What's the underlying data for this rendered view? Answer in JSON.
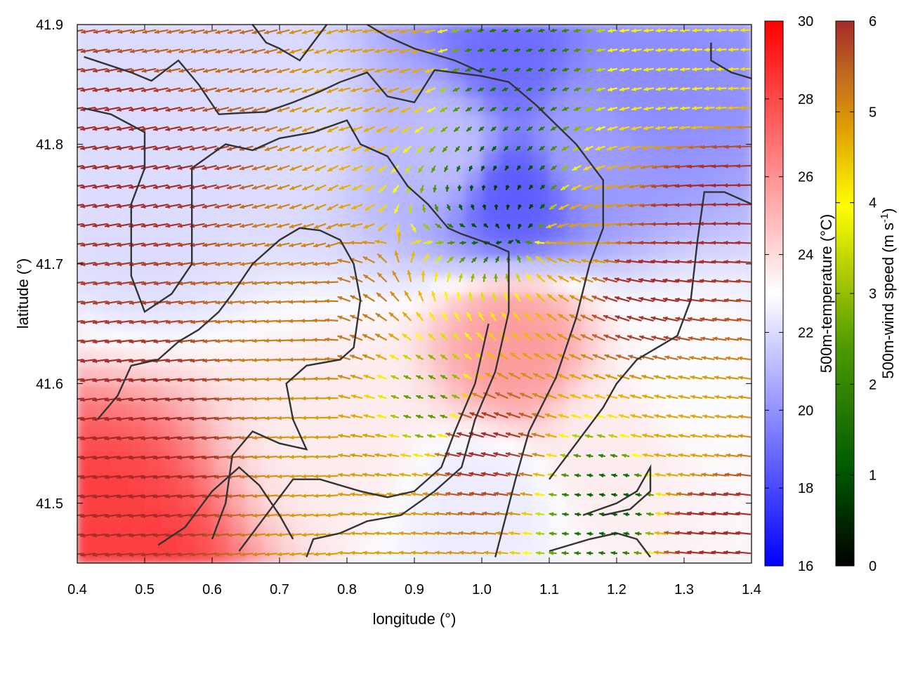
{
  "chart_data": {
    "type": "heatmap",
    "title": "",
    "xlabel": "longitude (°)",
    "ylabel": "latitude (°)",
    "xlim": [
      0.4,
      1.4
    ],
    "ylim": [
      41.45,
      41.9
    ],
    "x_ticks": [
      "0.4",
      "0.5",
      "0.6",
      "0.7",
      "0.8",
      "0.9",
      "1.0",
      "1.1",
      "1.2",
      "1.3",
      "1.4"
    ],
    "y_ticks": [
      "41.5",
      "41.6",
      "41.7",
      "41.8",
      "41.9"
    ],
    "grid": false,
    "overlay": "wind vectors",
    "coastline_color": "#333333",
    "temperature_colorbar": {
      "label": "500m-temperature (°C)",
      "range": [
        16,
        30
      ],
      "ticks": [
        "16",
        "18",
        "20",
        "22",
        "24",
        "26",
        "28",
        "30"
      ],
      "colors": [
        "#0000ff",
        "#ffffff",
        "#ff0000"
      ]
    },
    "wind_colorbar": {
      "label": "500m-wind speed (m s",
      "label_superscript": "-1",
      "label_suffix": ")",
      "range": [
        0,
        6
      ],
      "ticks": [
        "0",
        "1",
        "2",
        "3",
        "4",
        "5",
        "6"
      ],
      "colors": [
        "#000000",
        "#006400",
        "#6aaa00",
        "#ffff00",
        "#e8b000",
        "#c87820",
        "#a52a2a"
      ]
    },
    "temperature_field": [
      {
        "lon": 1.04,
        "lat": 41.87,
        "value": 18.5
      },
      {
        "lon": 1.05,
        "lat": 41.76,
        "value": 18.0
      },
      {
        "lon": 1.15,
        "lat": 41.8,
        "value": 20.0
      },
      {
        "lon": 1.25,
        "lat": 41.85,
        "value": 19.5
      },
      {
        "lon": 0.95,
        "lat": 41.8,
        "value": 21.0
      },
      {
        "lon": 1.05,
        "lat": 41.63,
        "value": 26.0
      },
      {
        "lon": 0.45,
        "lat": 41.46,
        "value": 29.0
      },
      {
        "lon": 0.5,
        "lat": 41.75,
        "value": 22.0
      },
      {
        "lon": 0.7,
        "lat": 41.82,
        "value": 22.0
      },
      {
        "lon": 0.8,
        "lat": 41.57,
        "value": 23.5
      },
      {
        "lon": 1.2,
        "lat": 41.55,
        "value": 23.5
      },
      {
        "lon": 1.3,
        "lat": 41.6,
        "value": 23.0
      },
      {
        "lon": 1.0,
        "lat": 41.5,
        "value": 22.5
      }
    ],
    "wind_field": [
      {
        "lon": 1.05,
        "lat": 41.75,
        "speed": 0.6
      },
      {
        "lon": 1.05,
        "lat": 41.86,
        "speed": 1.2
      },
      {
        "lon": 1.2,
        "lat": 41.5,
        "speed": 1.0
      },
      {
        "lon": 0.93,
        "lat": 41.58,
        "speed": 1.8
      },
      {
        "lon": 1.3,
        "lat": 41.86,
        "speed": 3.2
      },
      {
        "lon": 0.85,
        "lat": 41.88,
        "speed": 4.3
      },
      {
        "lon": 1.15,
        "lat": 41.72,
        "speed": 4.3
      },
      {
        "lon": 0.83,
        "lat": 41.53,
        "speed": 4.4
      },
      {
        "lon": 1.3,
        "lat": 41.55,
        "speed": 4.2
      },
      {
        "lon": 0.8,
        "lat": 41.65,
        "speed": 5.0
      },
      {
        "lon": 0.6,
        "lat": 41.9,
        "speed": 5.2
      },
      {
        "lon": 0.5,
        "lat": 41.8,
        "speed": 6.0
      },
      {
        "lon": 0.5,
        "lat": 41.55,
        "speed": 6.0
      },
      {
        "lon": 1.25,
        "lat": 41.68,
        "speed": 6.0
      },
      {
        "lon": 1.35,
        "lat": 41.75,
        "speed": 6.0
      },
      {
        "lon": 1.35,
        "lat": 41.48,
        "speed": 6.0
      },
      {
        "lon": 1.0,
        "lat": 41.55,
        "speed": 6.0
      }
    ],
    "coastlines": [
      [
        [
          0.41,
          41.873
        ],
        [
          0.48,
          41.86
        ],
        [
          0.51,
          41.853
        ],
        [
          0.55,
          41.87
        ],
        [
          0.58,
          41.85
        ],
        [
          0.61,
          41.825
        ],
        [
          0.64,
          41.826
        ],
        [
          0.68,
          41.827
        ],
        [
          0.72,
          41.835
        ],
        [
          0.76,
          41.844
        ],
        [
          0.79,
          41.852
        ],
        [
          0.83,
          41.86
        ],
        [
          0.86,
          41.84
        ],
        [
          0.9,
          41.835
        ],
        [
          0.93,
          41.862
        ],
        [
          1.0,
          41.857
        ],
        [
          1.04,
          41.852
        ],
        [
          1.08,
          41.833
        ],
        [
          1.14,
          41.8
        ],
        [
          1.18,
          41.77
        ],
        [
          1.18,
          41.73
        ],
        [
          1.16,
          41.7
        ],
        [
          1.14,
          41.655
        ],
        [
          1.11,
          41.605
        ],
        [
          1.07,
          41.56
        ],
        [
          1.05,
          41.52
        ],
        [
          1.02,
          41.455
        ]
      ],
      [
        [
          0.41,
          41.83
        ],
        [
          0.45,
          41.825
        ],
        [
          0.5,
          41.81
        ],
        [
          0.5,
          41.78
        ],
        [
          0.48,
          41.75
        ],
        [
          0.48,
          41.69
        ],
        [
          0.5,
          41.66
        ],
        [
          0.54,
          41.675
        ],
        [
          0.57,
          41.7
        ],
        [
          0.57,
          41.78
        ],
        [
          0.62,
          41.8
        ],
        [
          0.66,
          41.795
        ],
        [
          0.7,
          41.805
        ],
        [
          0.75,
          41.81
        ],
        [
          0.8,
          41.82
        ],
        [
          0.82,
          41.8
        ],
        [
          0.86,
          41.79
        ],
        [
          0.89,
          41.765
        ],
        [
          0.92,
          41.75
        ],
        [
          0.95,
          41.73
        ],
        [
          0.97,
          41.725
        ],
        [
          1.02,
          41.715
        ],
        [
          1.04,
          41.71
        ],
        [
          1.04,
          41.66
        ],
        [
          1.02,
          41.61
        ],
        [
          0.99,
          41.57
        ],
        [
          0.97,
          41.53
        ],
        [
          0.93,
          41.51
        ],
        [
          0.88,
          41.49
        ],
        [
          0.83,
          41.485
        ],
        [
          0.79,
          41.475
        ],
        [
          0.75,
          41.47
        ],
        [
          0.74,
          41.455
        ]
      ],
      [
        [
          0.43,
          41.57
        ],
        [
          0.46,
          41.59
        ],
        [
          0.48,
          41.615
        ],
        [
          0.52,
          41.62
        ],
        [
          0.55,
          41.635
        ],
        [
          0.58,
          41.645
        ],
        [
          0.61,
          41.66
        ],
        [
          0.63,
          41.675
        ],
        [
          0.66,
          41.7
        ],
        [
          0.7,
          41.72
        ],
        [
          0.73,
          41.73
        ],
        [
          0.76,
          41.728
        ],
        [
          0.79,
          41.72
        ],
        [
          0.81,
          41.7
        ],
        [
          0.82,
          41.67
        ],
        [
          0.81,
          41.63
        ],
        [
          0.79,
          41.62
        ],
        [
          0.74,
          41.615
        ],
        [
          0.71,
          41.6
        ],
        [
          0.72,
          41.57
        ],
        [
          0.74,
          41.545
        ],
        [
          0.7,
          41.55
        ],
        [
          0.66,
          41.56
        ],
        [
          0.63,
          41.54
        ],
        [
          0.62,
          41.5
        ],
        [
          0.6,
          41.47
        ]
      ],
      [
        [
          0.52,
          41.465
        ],
        [
          0.56,
          41.48
        ],
        [
          0.6,
          41.51
        ],
        [
          0.64,
          41.53
        ],
        [
          0.67,
          41.515
        ],
        [
          0.7,
          41.49
        ],
        [
          0.72,
          41.47
        ]
      ],
      [
        [
          0.64,
          41.46
        ],
        [
          0.68,
          41.49
        ],
        [
          0.72,
          41.52
        ],
        [
          0.76,
          41.52
        ],
        [
          0.82,
          41.51
        ],
        [
          0.86,
          41.505
        ],
        [
          0.9,
          41.51
        ],
        [
          0.94,
          41.53
        ],
        [
          0.96,
          41.56
        ],
        [
          0.99,
          41.6
        ],
        [
          1.01,
          41.65
        ]
      ],
      [
        [
          0.66,
          41.9
        ],
        [
          0.68,
          41.885
        ],
        [
          0.7,
          41.88
        ],
        [
          0.73,
          41.87
        ],
        [
          0.75,
          41.885
        ],
        [
          0.77,
          41.9
        ]
      ],
      [
        [
          1.1,
          41.46
        ],
        [
          1.16,
          41.47
        ],
        [
          1.2,
          41.475
        ],
        [
          1.23,
          41.47
        ],
        [
          1.25,
          41.455
        ]
      ],
      [
        [
          1.15,
          41.49
        ],
        [
          1.2,
          41.5
        ],
        [
          1.23,
          41.51
        ],
        [
          1.25,
          41.53
        ],
        [
          1.25,
          41.51
        ],
        [
          1.22,
          41.495
        ],
        [
          1.18,
          41.49
        ]
      ],
      [
        [
          1.1,
          41.52
        ],
        [
          1.14,
          41.55
        ],
        [
          1.18,
          41.58
        ],
        [
          1.2,
          41.6
        ],
        [
          1.23,
          41.62
        ],
        [
          1.26,
          41.63
        ],
        [
          1.29,
          41.64
        ],
        [
          1.31,
          41.67
        ],
        [
          1.32,
          41.72
        ],
        [
          1.33,
          41.76
        ],
        [
          1.36,
          41.76
        ],
        [
          1.4,
          41.75
        ]
      ],
      [
        [
          1.34,
          41.885
        ],
        [
          1.34,
          41.87
        ],
        [
          1.37,
          41.86
        ],
        [
          1.4,
          41.855
        ]
      ],
      [
        [
          0.83,
          41.9
        ],
        [
          0.86,
          41.89
        ],
        [
          0.9,
          41.88
        ],
        [
          0.93,
          41.875
        ],
        [
          0.96,
          41.87
        ],
        [
          1.0,
          41.86
        ]
      ]
    ],
    "x_tick_values": [
      0.4,
      0.5,
      0.6,
      0.7,
      0.8,
      0.9,
      1.0,
      1.1,
      1.2,
      1.3,
      1.4
    ],
    "y_tick_values": [
      41.5,
      41.6,
      41.7,
      41.8,
      41.9
    ]
  }
}
